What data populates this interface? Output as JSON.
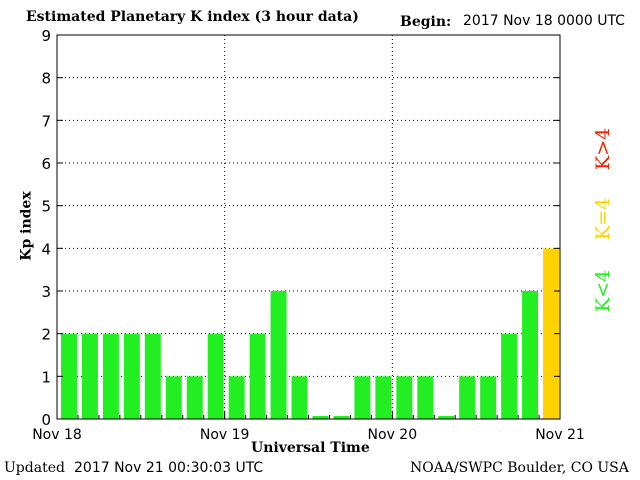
{
  "header": {
    "title": "Estimated Planetary K index (3 hour data)",
    "begin_label": "Begin:",
    "begin_value": "2017 Nov 18 0000 UTC"
  },
  "footer": {
    "updated_label": "Updated",
    "updated_value": "2017 Nov 21 00:30:03 UTC",
    "source": "NOAA/SWPC Boulder, CO USA"
  },
  "legend": {
    "low": "K<4",
    "mid": "K=4",
    "high": "K>4"
  },
  "colors": {
    "low": "#22ee22",
    "mid": "#ffd200",
    "high": "#ee2200"
  },
  "chart_data": {
    "type": "bar",
    "title": "Estimated Planetary K index (3 hour data)",
    "xlabel": "Universal Time",
    "ylabel": "Kp index",
    "ylim": [
      0,
      9
    ],
    "yticks": [
      "0",
      "1",
      "2",
      "3",
      "4",
      "5",
      "6",
      "7",
      "8",
      "9"
    ],
    "xticks": [
      "Nov 18",
      "Nov 19",
      "Nov 20",
      "Nov 21"
    ],
    "grid": true,
    "values": [
      2,
      2,
      2,
      2,
      2,
      1,
      1,
      2,
      1,
      2,
      3,
      1,
      0,
      0,
      1,
      1,
      1,
      1,
      0,
      1,
      1,
      2,
      3,
      4
    ]
  }
}
